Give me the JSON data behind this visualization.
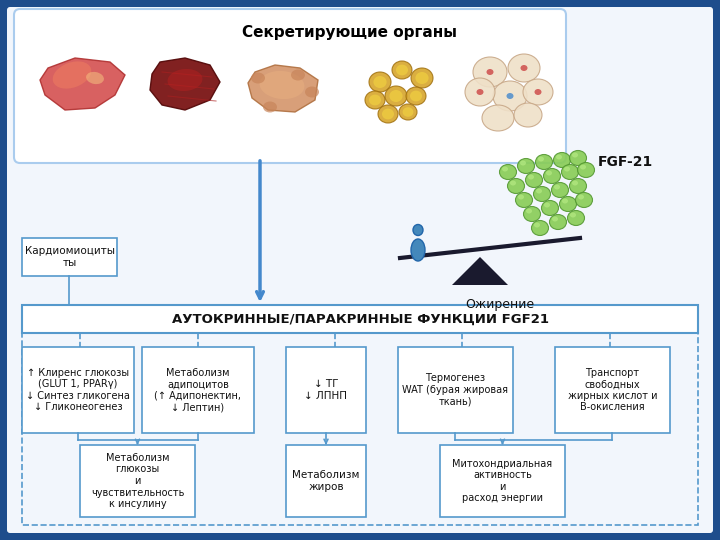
{
  "bg_color": "#1e4d8c",
  "inner_bg": "#f2f6fc",
  "white": "#ffffff",
  "box_border": "#5599cc",
  "dashed_border": "#5599cc",
  "title_top": "Секретирующие органы",
  "main_banner": "АУТОКРИННЫЕ/ПАРАКРИННЫЕ ФУНКЦИИ FGF21",
  "fgf21_label": "FGF-21",
  "obesity_label": "Ожирение",
  "cardiomyo_label": "Кардиомиоциты\nты",
  "box1_text": "↑ Клиренс глюкозы\n(GLUT 1, PPARγ)\n↓ Синтез гликогена\n↓ Гликонеогенез",
  "box2_text": "Метаболизм\nадипоцитов\n(↑ Адипонектин,\n↓ Лептин)",
  "box3_text": "↓ ТГ\n↓ ЛПНП",
  "box4_text": "Термогенез\nWAT (бурая жировая\nткань)",
  "box5_text": "Транспорт\nсвободных\nжирных кислот и\nВ-окисления",
  "box_b1_text": "Метаболизм\nглюкозы\nи\nчувствительность\nк инсулину",
  "box_b2_text": "Метаболизм\nжиров",
  "box_b3_text": "Митохондриальная\nактивность\nи\nрасход энергии",
  "arrow_color": "#5599cc",
  "line_color": "#5599cc"
}
